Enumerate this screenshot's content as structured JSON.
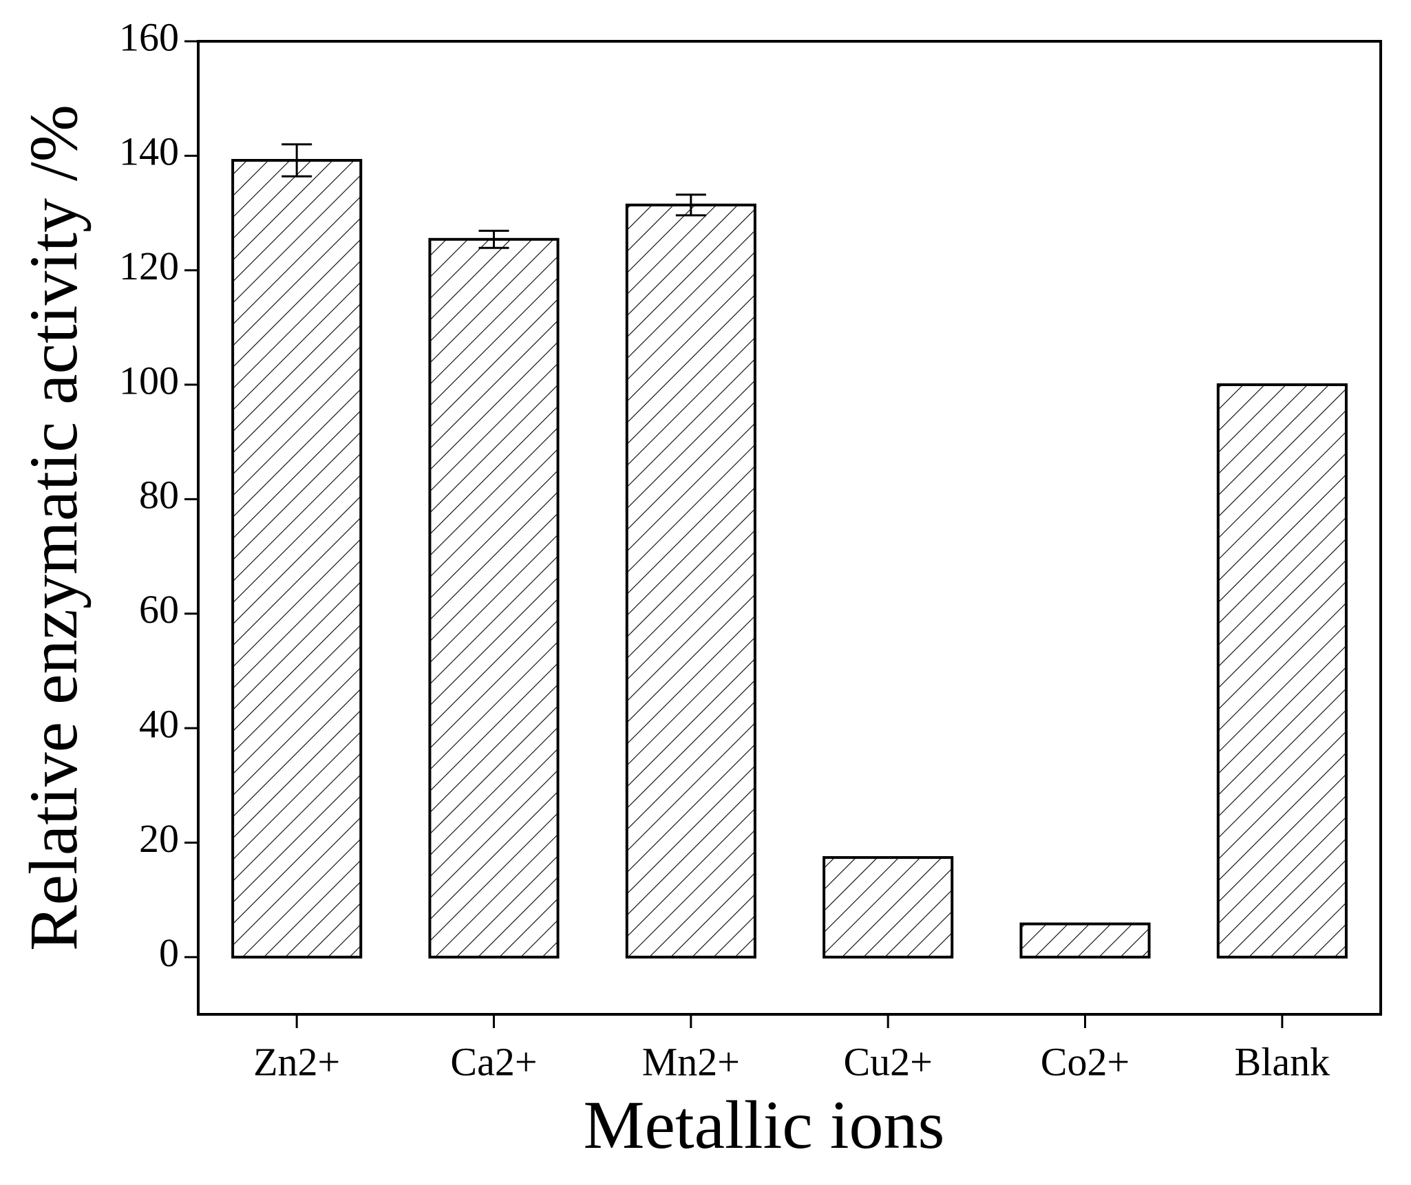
{
  "chart_data": {
    "type": "bar",
    "x_label": "Metallic ions",
    "y_label": "Relative enzymatic activity /%",
    "categories": [
      "Zn2+",
      "Ca2+",
      "Mn2+",
      "Cu2+",
      "Co2+",
      "Blank"
    ],
    "values": [
      139.2,
      125.4,
      131.4,
      17.4,
      5.8,
      100
    ],
    "errors": [
      2.8,
      1.5,
      1.8,
      0,
      0,
      0
    ],
    "color": "#000000",
    "hatch": "diagonal",
    "ylim": [
      -10,
      160
    ],
    "yticks": [
      0,
      20,
      40,
      60,
      80,
      100,
      120,
      140,
      160
    ],
    "grid": false
  }
}
